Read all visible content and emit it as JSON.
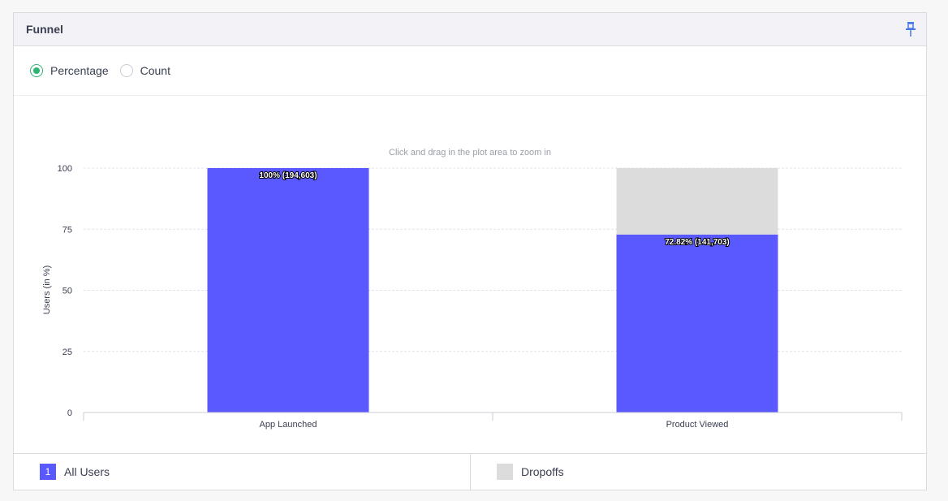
{
  "panel": {
    "title": "Funnel",
    "pin_icon": "pin-icon"
  },
  "toggle": {
    "options": [
      {
        "label": "Percentage",
        "checked": true
      },
      {
        "label": "Count",
        "checked": false
      }
    ]
  },
  "chart_data": {
    "type": "bar",
    "stacked": true,
    "hint": "Click and drag in the plot area to zoom in",
    "ylabel": "Users (in %)",
    "xlabel": "",
    "ylim": [
      0,
      100
    ],
    "yticks": [
      "0",
      "25",
      "50",
      "75",
      "100"
    ],
    "categories": [
      "App Launched",
      "Product Viewed"
    ],
    "series": [
      {
        "name": "All Users",
        "color": "#5a58ff",
        "values": [
          100,
          72.82
        ]
      },
      {
        "name": "Dropoffs",
        "color": "#dcdcdc",
        "values": [
          0,
          27.18
        ]
      }
    ],
    "data_labels": [
      "100% (194,603)",
      "72.82% (141,703)"
    ],
    "grid": true
  },
  "legend": {
    "items": [
      {
        "badge": "1",
        "label": "All Users",
        "color": "#5a58ff"
      },
      {
        "badge": "",
        "label": "Dropoffs",
        "color": "#dcdcdc"
      }
    ]
  }
}
